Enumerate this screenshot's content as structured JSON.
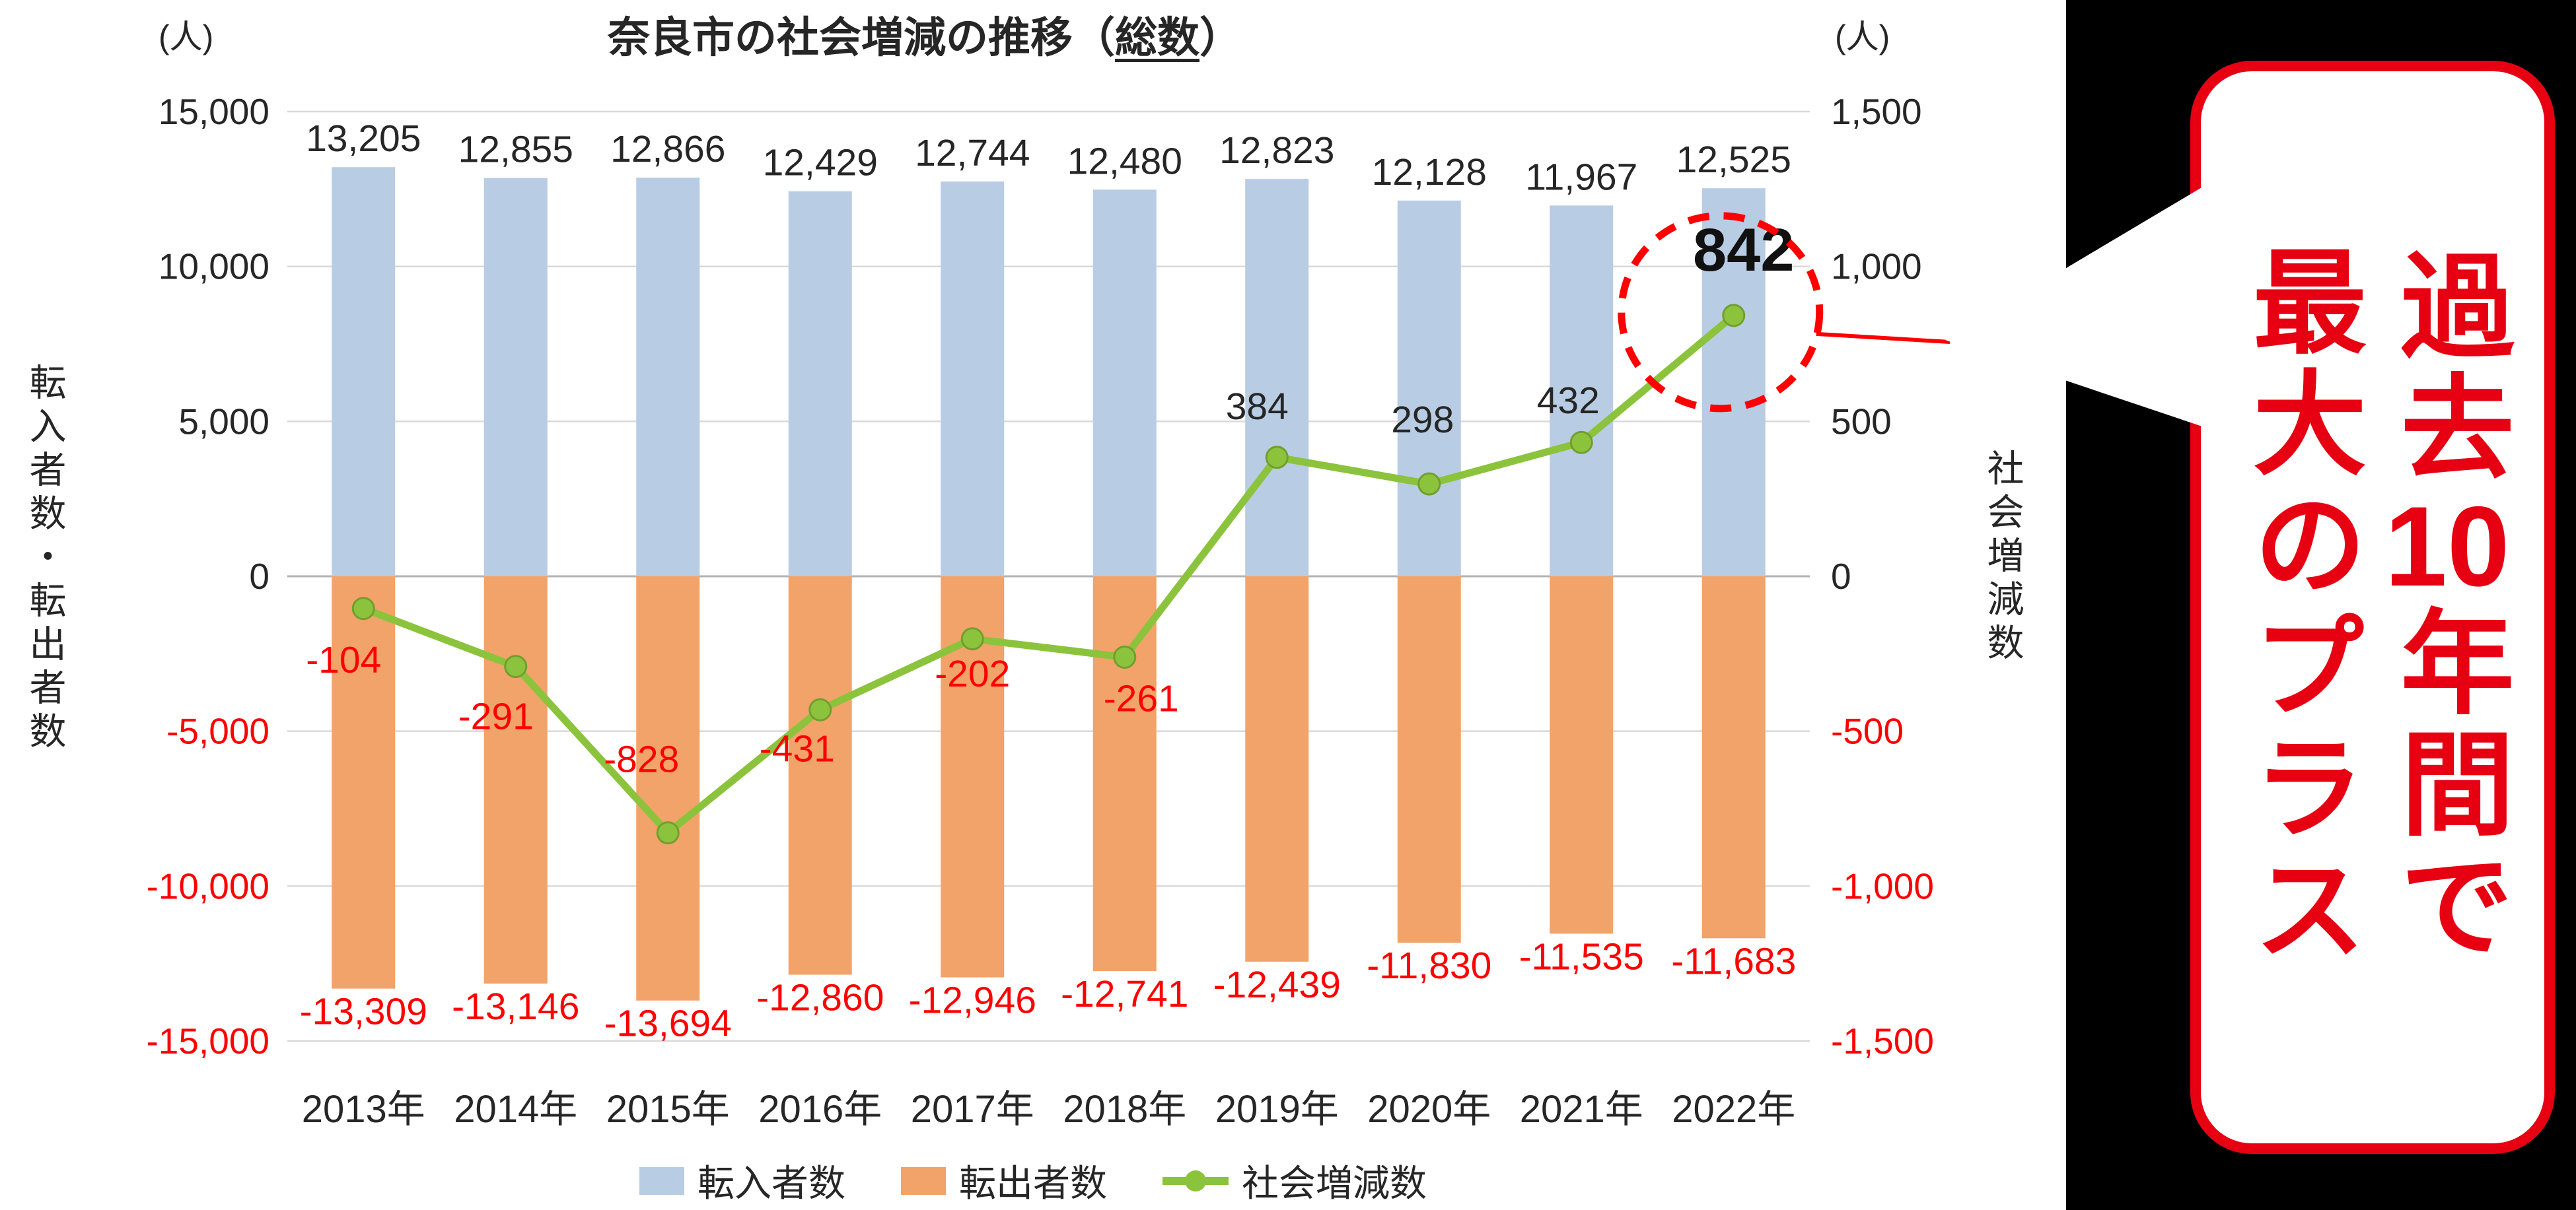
{
  "page": {
    "background": "#ffffff",
    "panel_background": "#000000"
  },
  "chart_data": {
    "type": "bar+line",
    "title_prefix": "奈良市の社会増減の推移（",
    "title_underlined": "総数",
    "title_suffix": "）",
    "categories": [
      "2013年",
      "2014年",
      "2015年",
      "2016年",
      "2017年",
      "2018年",
      "2019年",
      "2020年",
      "2021年",
      "2022年"
    ],
    "series": [
      {
        "name": "転入者数",
        "type": "bar",
        "axis": "left",
        "color": "#b8cce4",
        "values": [
          13205,
          12855,
          12866,
          12429,
          12744,
          12480,
          12823,
          12128,
          11967,
          12525
        ]
      },
      {
        "name": "転出者数",
        "type": "bar",
        "axis": "left",
        "color": "#f2a36a",
        "values": [
          -13309,
          -13146,
          -13694,
          -12860,
          -12946,
          -12741,
          -12439,
          -11830,
          -11535,
          -11683
        ]
      },
      {
        "name": "社会増減数",
        "type": "line",
        "axis": "right",
        "color": "#8cc33c",
        "values": [
          -104,
          -291,
          -828,
          -431,
          -202,
          -261,
          384,
          298,
          432,
          842
        ]
      }
    ],
    "left_axis": {
      "unit": "(人)",
      "title": "転入者数・転出者数",
      "range": [
        -15000,
        15000
      ],
      "ticks": [
        15000,
        10000,
        5000,
        0,
        -5000,
        -10000,
        -15000
      ]
    },
    "right_axis": {
      "unit": "(人)",
      "title": "社会増減数",
      "range": [
        -1500,
        1500
      ],
      "ticks": [
        1500,
        1000,
        500,
        0,
        -500,
        -1000,
        -1500
      ]
    },
    "grid": true,
    "legend_position": "bottom",
    "highlight": {
      "index": 9,
      "value": 842,
      "style": "red-dashed-circle"
    }
  },
  "callout": {
    "lines": [
      "過去10年間で",
      "最大のプラス"
    ],
    "text_color": "#e60012",
    "border_color": "#e60012",
    "background": "#ffffff"
  },
  "colors": {
    "negative_label": "#ff0000",
    "text": "#262626",
    "grid": "#d9d9d9",
    "zero_line": "#b3b3b3",
    "highlight_circle": "#ff0000"
  }
}
